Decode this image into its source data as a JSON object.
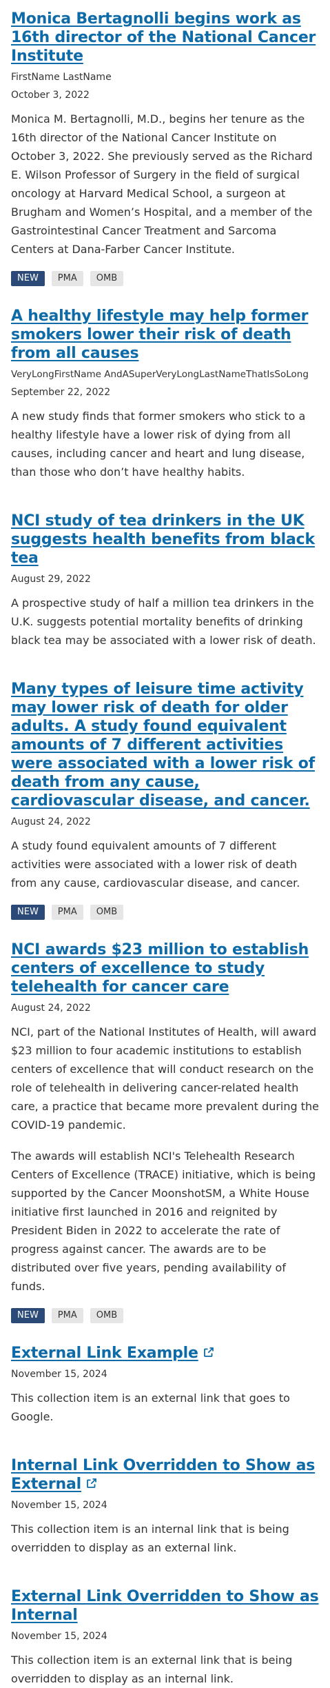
{
  "items": [
    {
      "title": "Monica Bertagnolli begins work as 16th director of the National Cancer Institute",
      "author": "FirstName LastName",
      "date": "October 3, 2022",
      "paragraphs": [
        "Monica M. Bertagnolli, M.D., begins her tenure as the 16th director of the National Cancer Institute on October 3, 2022. She previously served as the Richard E. Wilson Professor of Surgery in the field of surgical oncology at Harvard Medical School, a surgeon at Brugham and Women’s Hospital, and a member of the Gastrointestinal Cancer Treatment and Sarcoma Centers at Dana-Farber Cancer Institute."
      ],
      "tags": [
        "NEW",
        "PMA",
        "OMB"
      ]
    },
    {
      "title": "A healthy lifestyle may help former smokers lower their risk of death from all causes",
      "author": "VeryLongFirstName AndASuperVeryLongLastNameThatIsSoLong",
      "date": "September 22, 2022",
      "paragraphs": [
        "A new study finds that former smokers who stick to a healthy lifestyle have a lower risk of dying from all causes, including cancer and heart and lung disease, than those who don’t have healthy habits."
      ]
    },
    {
      "title": "NCI study of tea drinkers in the UK suggests health benefits from black tea",
      "date": "August 29, 2022",
      "paragraphs": [
        "A prospective study of half a million tea drinkers in the U.K. suggests potential mortality benefits of drinking black tea may be associated with a lower risk of death."
      ]
    },
    {
      "title": "Many types of leisure time activity may lower risk of death for older adults. A study found equivalent amounts of 7 different activities were associated with a lower risk of death from any cause, cardiovascular disease, and cancer.",
      "date": "August 24, 2022",
      "paragraphs": [
        "A study found equivalent amounts of 7 different activities were associated with a lower risk of death from any cause, cardiovascular disease, and cancer."
      ],
      "tags": [
        "NEW",
        "PMA",
        "OMB"
      ]
    },
    {
      "title": "NCI awards $23 million to establish centers of excellence to study telehealth for cancer care",
      "date": "August 24, 2022",
      "paragraphs": [
        "NCI, part of the National Institutes of Health, will award $23 million to four academic institutions to establish centers of excellence that will conduct research on the role of telehealth in delivering cancer-related health care, a practice that became more prevalent during the COVID-19 pandemic.",
        "The awards will establish NCI's Telehealth Research Centers of Excellence (TRACE) initiative, which is being supported by the Cancer MoonshotSM, a White House initiative first launched in 2016 and reignited by President Biden in 2022 to accelerate the rate of progress against cancer. The awards are to be distributed over five years, pending availability of funds."
      ],
      "tags": [
        "NEW",
        "PMA",
        "OMB"
      ]
    },
    {
      "title": "External Link Example",
      "external": true,
      "date": "November 15, 2024",
      "paragraphs": [
        "This collection item is an external link that goes to Google."
      ]
    },
    {
      "title": "Internal Link Overridden to Show as External",
      "external": true,
      "date": "November 15, 2024",
      "paragraphs": [
        "This collection item is an internal link that is being overridden to display as an external link."
      ]
    },
    {
      "title": "External Link Overridden to Show as Internal",
      "date": "November 15, 2024",
      "paragraphs": [
        "This collection item is an external link that is being overridden to display as an internal link."
      ]
    }
  ],
  "icons": {
    "external": "external-link-icon"
  },
  "colors": {
    "link": "#0e6ba8",
    "tag_new_bg": "#2b4a77",
    "tag_bg": "#e6e6e6"
  }
}
